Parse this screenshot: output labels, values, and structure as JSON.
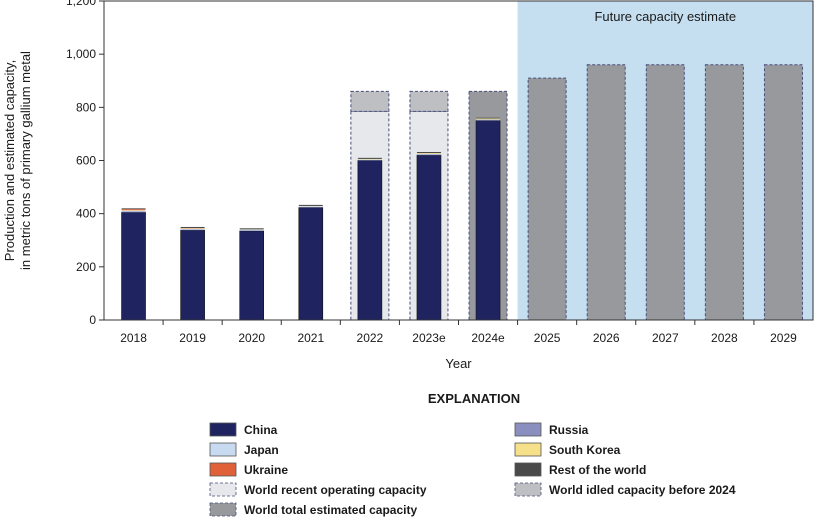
{
  "chart_data": {
    "type": "bar",
    "categories": [
      "2018",
      "2019",
      "2020",
      "2021",
      "2022",
      "2023e",
      "2024e",
      "2025",
      "2026",
      "2027",
      "2028",
      "2029"
    ],
    "xlabel": "Year",
    "ylabel_lines": [
      "Production and estimated capacity,",
      "in metric tons of primary gallium metal"
    ],
    "ylim": [
      0,
      1200
    ],
    "yticks": [
      0,
      200,
      400,
      600,
      800,
      1000,
      1200
    ],
    "ytick_labels": [
      "0",
      "200",
      "400",
      "600",
      "800",
      "1,000",
      "1,200"
    ],
    "future_region": {
      "label": "Future capacity estimate",
      "from_category": "2025",
      "color": "#c5dff0"
    },
    "production_series": [
      {
        "key": "china",
        "name": "China",
        "color": "#1f2360",
        "values": [
          405,
          338,
          335,
          423,
          600,
          620,
          750,
          0,
          0,
          0,
          0,
          0
        ]
      },
      {
        "key": "russia",
        "name": "Russia",
        "color": "#8b8fbf",
        "values": [
          3,
          2,
          2,
          2,
          2,
          3,
          3,
          0,
          0,
          0,
          0,
          0
        ]
      },
      {
        "key": "japan",
        "name": "Japan",
        "color": "#c7daf0",
        "values": [
          3,
          3,
          3,
          3,
          2,
          2,
          2,
          0,
          0,
          0,
          0,
          0
        ]
      },
      {
        "key": "south_korea",
        "name": "South Korea",
        "color": "#f7e08a",
        "values": [
          2,
          2,
          1,
          1,
          2,
          3,
          3,
          0,
          0,
          0,
          0,
          0
        ]
      },
      {
        "key": "ukraine",
        "name": "Ukraine",
        "color": "#e0603a",
        "values": [
          4,
          1,
          0,
          0,
          0,
          0,
          0,
          0,
          0,
          0,
          0,
          0
        ]
      },
      {
        "key": "rest_of_world",
        "name": "Rest of the world",
        "color": "#4a4a4a",
        "values": [
          3,
          4,
          4,
          4,
          4,
          4,
          3,
          0,
          0,
          0,
          0,
          0
        ]
      }
    ],
    "capacity_series": [
      {
        "key": "recent_operating",
        "name": "World recent operating capacity",
        "color": "#e6e8ec",
        "dashed": true,
        "values": [
          null,
          null,
          null,
          null,
          785,
          785,
          null,
          null,
          null,
          null,
          null,
          null
        ]
      },
      {
        "key": "idled",
        "name": "World idled capacity before 2024",
        "color": "#bdbfc3",
        "dashed": true,
        "values": [
          null,
          null,
          null,
          null,
          75,
          75,
          null,
          null,
          null,
          null,
          null,
          null
        ]
      },
      {
        "key": "total_estimated",
        "name": "World total estimated capacity",
        "color": "#97999d",
        "dashed": true,
        "values": [
          null,
          null,
          null,
          null,
          null,
          null,
          860,
          910,
          960,
          960,
          960,
          960
        ]
      }
    ],
    "legend": {
      "title": "EXPLANATION",
      "left": [
        {
          "name": "China",
          "color": "#1f2360",
          "dashed": false
        },
        {
          "name": "Japan",
          "color": "#c7daf0",
          "dashed": false
        },
        {
          "name": "Ukraine",
          "color": "#e0603a",
          "dashed": false
        },
        {
          "name": "World recent operating capacity",
          "color": "#e6e8ec",
          "dashed": true
        },
        {
          "name": "World total estimated capacity",
          "color": "#97999d",
          "dashed": true
        }
      ],
      "right": [
        {
          "name": "Russia",
          "color": "#8b8fbf",
          "dashed": false
        },
        {
          "name": "South Korea",
          "color": "#f7e08a",
          "dashed": false
        },
        {
          "name": "Rest of the world",
          "color": "#4a4a4a",
          "dashed": false
        },
        {
          "name": "World idled capacity before 2024",
          "color": "#bdbfc3",
          "dashed": true
        }
      ]
    }
  }
}
